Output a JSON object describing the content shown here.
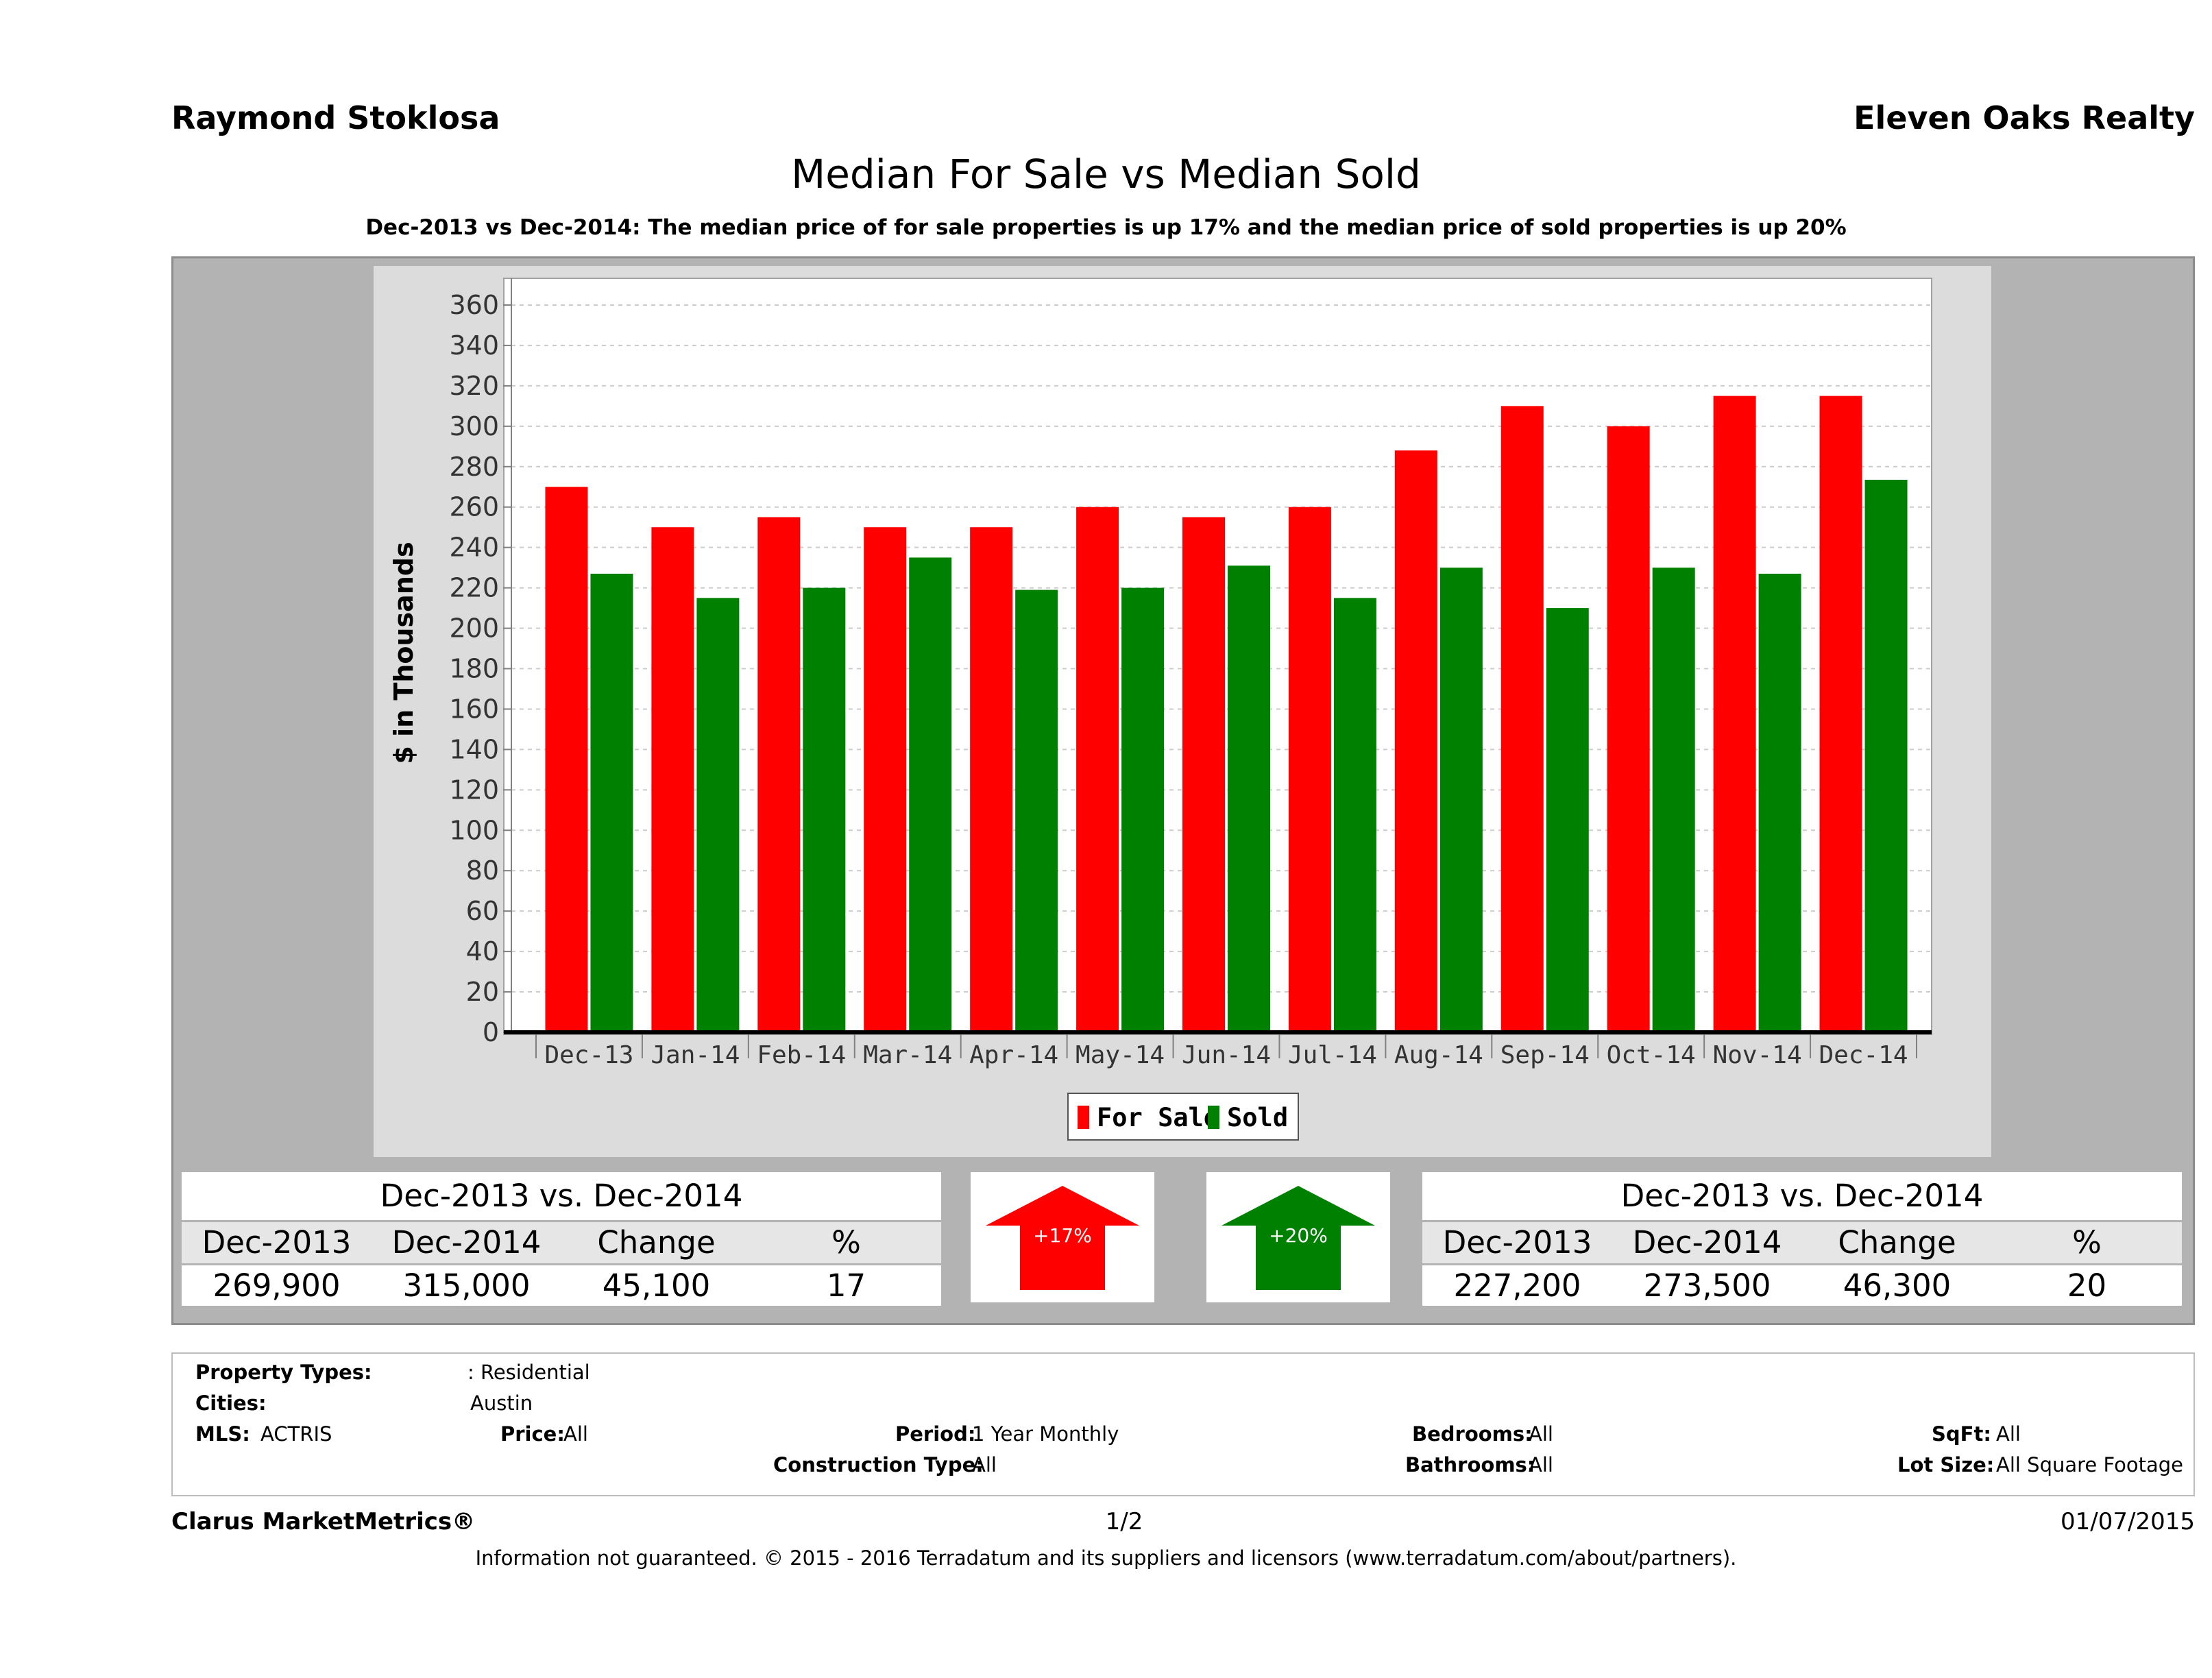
{
  "header": {
    "agent_name": "Raymond Stoklosa",
    "brokerage": "Eleven Oaks Realty"
  },
  "chart_data": {
    "type": "bar",
    "title": "Median For Sale vs Median Sold",
    "subtitle": "Dec-2013 vs Dec-2014: The median price of for sale properties is up 17% and the median price of sold properties is up 20%",
    "xlabel": "",
    "ylabel": "$ in Thousands",
    "ylim": [
      0,
      360
    ],
    "yticks": [
      0,
      20,
      40,
      60,
      80,
      100,
      120,
      140,
      160,
      180,
      200,
      220,
      240,
      260,
      280,
      300,
      320,
      340,
      360
    ],
    "grid": true,
    "legend_position": "bottom",
    "categories": [
      "Dec-13",
      "Jan-14",
      "Feb-14",
      "Mar-14",
      "Apr-14",
      "May-14",
      "Jun-14",
      "Jul-14",
      "Aug-14",
      "Sep-14",
      "Oct-14",
      "Nov-14",
      "Dec-14"
    ],
    "series": [
      {
        "name": "For Sale",
        "color": "#ff0000",
        "values": [
          270,
          250,
          255,
          250,
          250,
          260,
          255,
          260,
          288,
          310,
          300,
          315,
          315
        ]
      },
      {
        "name": "Sold",
        "color": "#008000",
        "values": [
          227,
          215,
          220,
          235,
          219,
          220,
          231,
          215,
          230,
          210,
          230,
          227,
          273.5
        ]
      }
    ]
  },
  "summary_for_sale": {
    "title": "Dec-2013 vs. Dec-2014",
    "headers": [
      "Dec-2013",
      "Dec-2014",
      "Change",
      "%"
    ],
    "values": [
      "269,900",
      "315,000",
      "45,100",
      "17"
    ],
    "badge": "+17%",
    "color": "#ff0000"
  },
  "summary_sold": {
    "title": "Dec-2013 vs. Dec-2014",
    "headers": [
      "Dec-2013",
      "Dec-2014",
      "Change",
      "%"
    ],
    "values": [
      "227,200",
      "273,500",
      "46,300",
      "20"
    ],
    "badge": "+20%",
    "color": "#008000"
  },
  "criteria": {
    "property_types_label": "Property Types:",
    "property_types_value": ": Residential",
    "cities_label": "Cities:",
    "cities_value": "Austin",
    "mls_label": "MLS:",
    "mls_value": "ACTRIS",
    "price_label": "Price:",
    "price_value": "All",
    "period_label": "Period:",
    "period_value": "1 Year Monthly",
    "construction_label": "Construction Type:",
    "construction_value": "All",
    "bedrooms_label": "Bedrooms:",
    "bedrooms_value": "All",
    "bathrooms_label": "Bathrooms:",
    "bathrooms_value": "All",
    "sqft_label": "SqFt:",
    "sqft_value": "All",
    "lot_label": "Lot Size:",
    "lot_value": "All Square Footage"
  },
  "footer": {
    "brand": "Clarus MarketMetrics®",
    "page": "1/2",
    "date": "01/07/2015",
    "disclaimer": "Information not guaranteed. © 2015 - 2016 Terradatum and its suppliers and licensors (www.terradatum.com/about/partners)."
  }
}
